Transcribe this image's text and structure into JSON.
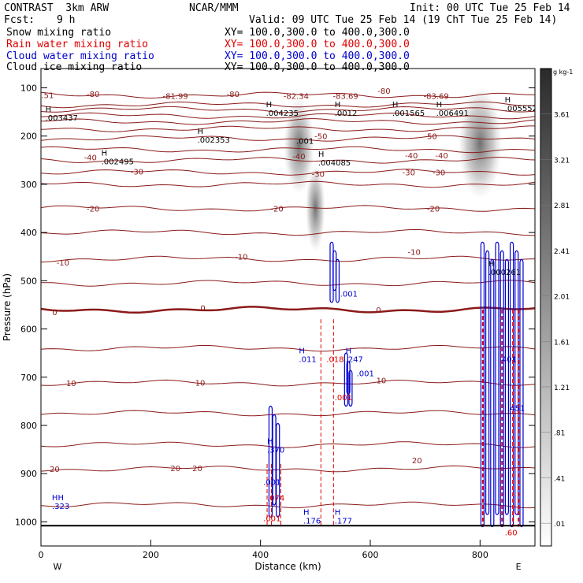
{
  "header": {
    "model": "CONTRAST  3km ARW",
    "org": "NCAR/MMM",
    "init": "Init: 00 UTC Tue 25 Feb 14",
    "fcst_label": "Fcst:",
    "fcst_value": "9 h",
    "valid": "Valid: 09 UTC Tue 25 Feb 14 (19 ChT Tue 25 Feb 14)",
    "fields": [
      {
        "name": "Snow mixing ratio",
        "xy": "XY= 100.0,300.0 to 400.0,300.0",
        "color": "#000000"
      },
      {
        "name": "Rain water mixing ratio",
        "xy": "XY= 100.0,300.0 to 400.0,300.0",
        "color": "#e00000"
      },
      {
        "name": "Cloud water mixing ratio",
        "xy": "XY= 100.0,300.0 to 400.0,300.0",
        "color": "#0000d0"
      },
      {
        "name": "Cloud ice mixing ratio",
        "xy": "XY= 100.0,300.0 to 400.0,300.0",
        "color": "#000000"
      }
    ]
  },
  "chart_data": {
    "type": "contour",
    "xlabel": "Distance (km)",
    "ylabel": "Pressure (hPa)",
    "xlim": [
      0,
      900
    ],
    "ylim": [
      1050,
      60
    ],
    "x_ticks": [
      0,
      200,
      400,
      600,
      800
    ],
    "y_ticks": [
      100,
      200,
      300,
      400,
      500,
      600,
      700,
      800,
      900,
      1000
    ],
    "x_end_labels": {
      "left": "W",
      "right": "E"
    },
    "colorbar": {
      "unit": "g kg-1",
      "labels": [
        "3.61",
        "3.21",
        "2.81",
        "2.41",
        "2.01",
        "1.61",
        "1.21",
        ".81",
        ".41",
        ".01"
      ]
    },
    "isotherms": [
      {
        "p": 115,
        "label": "-80"
      },
      {
        "p": 135,
        "label": "-81.99"
      },
      {
        "p": 145,
        "label": ""
      },
      {
        "p": 158,
        "label": ""
      },
      {
        "p": 170,
        "label": ""
      },
      {
        "p": 185,
        "label": "-50"
      },
      {
        "p": 205,
        "label": ""
      },
      {
        "p": 228,
        "label": "-40"
      },
      {
        "p": 250,
        "label": ""
      },
      {
        "p": 275,
        "label": "-30"
      },
      {
        "p": 300,
        "label": ""
      },
      {
        "p": 350,
        "label": "-20"
      },
      {
        "p": 400,
        "label": ""
      },
      {
        "p": 455,
        "label": "-10"
      },
      {
        "p": 505,
        "label": ""
      },
      {
        "p": 560,
        "label": "0"
      },
      {
        "p": 640,
        "label": ""
      },
      {
        "p": 712,
        "label": "10"
      },
      {
        "p": 775,
        "label": ""
      },
      {
        "p": 840,
        "label": ""
      },
      {
        "p": 890,
        "label": "20"
      },
      {
        "p": 965,
        "label": ""
      }
    ],
    "temp_labels": [
      {
        "x": 12,
        "p": 115,
        "text": ".51"
      },
      {
        "x": 95,
        "p": 112,
        "text": "-80"
      },
      {
        "x": 245,
        "p": 116,
        "text": "-81.99"
      },
      {
        "x": 350,
        "p": 112,
        "text": "-80"
      },
      {
        "x": 465,
        "p": 116,
        "text": "-82.34"
      },
      {
        "x": 555,
        "p": 116,
        "text": "-83.69"
      },
      {
        "x": 625,
        "p": 106,
        "text": "-80"
      },
      {
        "x": 720,
        "p": 116,
        "text": "-83.69"
      },
      {
        "x": 510,
        "p": 200,
        "text": "-50"
      },
      {
        "x": 710,
        "p": 200,
        "text": "-50"
      },
      {
        "x": 90,
        "p": 244,
        "text": "-40"
      },
      {
        "x": 470,
        "p": 241,
        "text": "-40"
      },
      {
        "x": 675,
        "p": 240,
        "text": "-40"
      },
      {
        "x": 730,
        "p": 240,
        "text": "-40"
      },
      {
        "x": 175,
        "p": 273,
        "text": "-30"
      },
      {
        "x": 505,
        "p": 278,
        "text": "-30"
      },
      {
        "x": 670,
        "p": 275,
        "text": "-30"
      },
      {
        "x": 725,
        "p": 275,
        "text": "-30"
      },
      {
        "x": 95,
        "p": 350,
        "text": "-20"
      },
      {
        "x": 430,
        "p": 350,
        "text": "-20"
      },
      {
        "x": 715,
        "p": 350,
        "text": "-20"
      },
      {
        "x": 40,
        "p": 462,
        "text": "-10"
      },
      {
        "x": 365,
        "p": 450,
        "text": "-10"
      },
      {
        "x": 680,
        "p": 440,
        "text": "-10"
      },
      {
        "x": 25,
        "p": 565,
        "text": "0"
      },
      {
        "x": 295,
        "p": 556,
        "text": "0"
      },
      {
        "x": 615,
        "p": 560,
        "text": "0"
      },
      {
        "x": 55,
        "p": 712,
        "text": "10"
      },
      {
        "x": 290,
        "p": 711,
        "text": "10"
      },
      {
        "x": 620,
        "p": 706,
        "text": "10"
      },
      {
        "x": 25,
        "p": 890,
        "text": "20"
      },
      {
        "x": 245,
        "p": 888,
        "text": "20"
      },
      {
        "x": 285,
        "p": 888,
        "text": "20"
      },
      {
        "x": 685,
        "p": 872,
        "text": "20"
      }
    ],
    "max_labels": [
      {
        "x": 8,
        "p": 160,
        "h": "H",
        "v": ".003437",
        "color": "#000000"
      },
      {
        "x": 110,
        "p": 250,
        "h": "H",
        "v": ".002495",
        "color": "#000000"
      },
      {
        "x": 285,
        "p": 205,
        "h": "H",
        "v": ".002353",
        "color": "#000000"
      },
      {
        "x": 410,
        "p": 150,
        "h": "H",
        "v": ".004235",
        "color": "#000000"
      },
      {
        "x": 505,
        "p": 253,
        "h": "H",
        "v": ".004085",
        "color": "#000000"
      },
      {
        "x": 535,
        "p": 150,
        "h": "H",
        "v": ".0012",
        "color": "#000000"
      },
      {
        "x": 640,
        "p": 150,
        "h": "H",
        "v": ".001565",
        "color": "#000000"
      },
      {
        "x": 720,
        "p": 150,
        "h": "H",
        "v": ".006491",
        "color": "#000000"
      },
      {
        "x": 845,
        "p": 140,
        "h": "H",
        "v": ".005552",
        "color": "#000000"
      },
      {
        "x": 815,
        "p": 480,
        "h": "H",
        "v": ".000261",
        "color": "#000000"
      },
      {
        "x": 465,
        "p": 208,
        "h": "",
        "v": ".001",
        "color": "#000000"
      },
      {
        "x": 545,
        "p": 525,
        "h": "",
        "v": ".001",
        "color": "#0000d0"
      },
      {
        "x": 470,
        "p": 660,
        "h": "H",
        "v": ".011",
        "color": "#0000d0"
      },
      {
        "x": 555,
        "p": 660,
        "h": "H",
        "v": ".247",
        "color": "#0000d0"
      },
      {
        "x": 575,
        "p": 690,
        "h": "",
        "v": ".001",
        "color": "#0000d0"
      },
      {
        "x": 520,
        "p": 660,
        "h": "",
        "v": ".018",
        "color": "#e00000"
      },
      {
        "x": 535,
        "p": 740,
        "h": "",
        "v": ".001",
        "color": "#e00000"
      },
      {
        "x": 412,
        "p": 848,
        "h": "H",
        "v": ".370",
        "color": "#0000d0"
      },
      {
        "x": 405,
        "p": 915,
        "h": "",
        "v": ".001",
        "color": "#0000d0"
      },
      {
        "x": 412,
        "p": 948,
        "h": "",
        "v": ".074",
        "color": "#e00000"
      },
      {
        "x": 405,
        "p": 990,
        "h": "",
        "v": ".001",
        "color": "#e00000"
      },
      {
        "x": 478,
        "p": 995,
        "h": "H",
        "v": ".176",
        "color": "#0000d0"
      },
      {
        "x": 535,
        "p": 995,
        "h": "H",
        "v": ".177",
        "color": "#0000d0"
      },
      {
        "x": 20,
        "p": 965,
        "h": "HH",
        "v": ".323",
        "color": "#0000d0"
      },
      {
        "x": 835,
        "p": 660,
        "h": "",
        "v": ".401",
        "color": "#0000d0"
      },
      {
        "x": 850,
        "p": 762,
        "h": "",
        "v": ".451",
        "color": "#0000d0"
      },
      {
        "x": 845,
        "p": 1020,
        "h": "",
        "v": ".60",
        "color": "#e00000"
      }
    ],
    "snow_plumes": [
      {
        "x": 470,
        "p_top": 120,
        "p_bot": 320,
        "halfw": 28
      },
      {
        "x": 500,
        "p_top": 260,
        "p_bot": 440,
        "halfw": 18
      },
      {
        "x": 800,
        "p_top": 100,
        "p_bot": 330,
        "halfw": 40
      }
    ],
    "rain_lines_x": [
      412,
      420,
      437,
      510,
      533,
      805,
      840,
      860,
      870
    ],
    "cloud_water_columns": [
      {
        "x": 425,
        "p_top": 760,
        "p_bot": 990,
        "halfw": 10
      },
      {
        "x": 535,
        "p_top": 420,
        "p_bot": 545,
        "halfw": 8
      },
      {
        "x": 560,
        "p_top": 650,
        "p_bot": 760,
        "halfw": 6
      },
      {
        "x": 840,
        "p_top": 420,
        "p_bot": 1010,
        "halfw": 40
      }
    ]
  }
}
